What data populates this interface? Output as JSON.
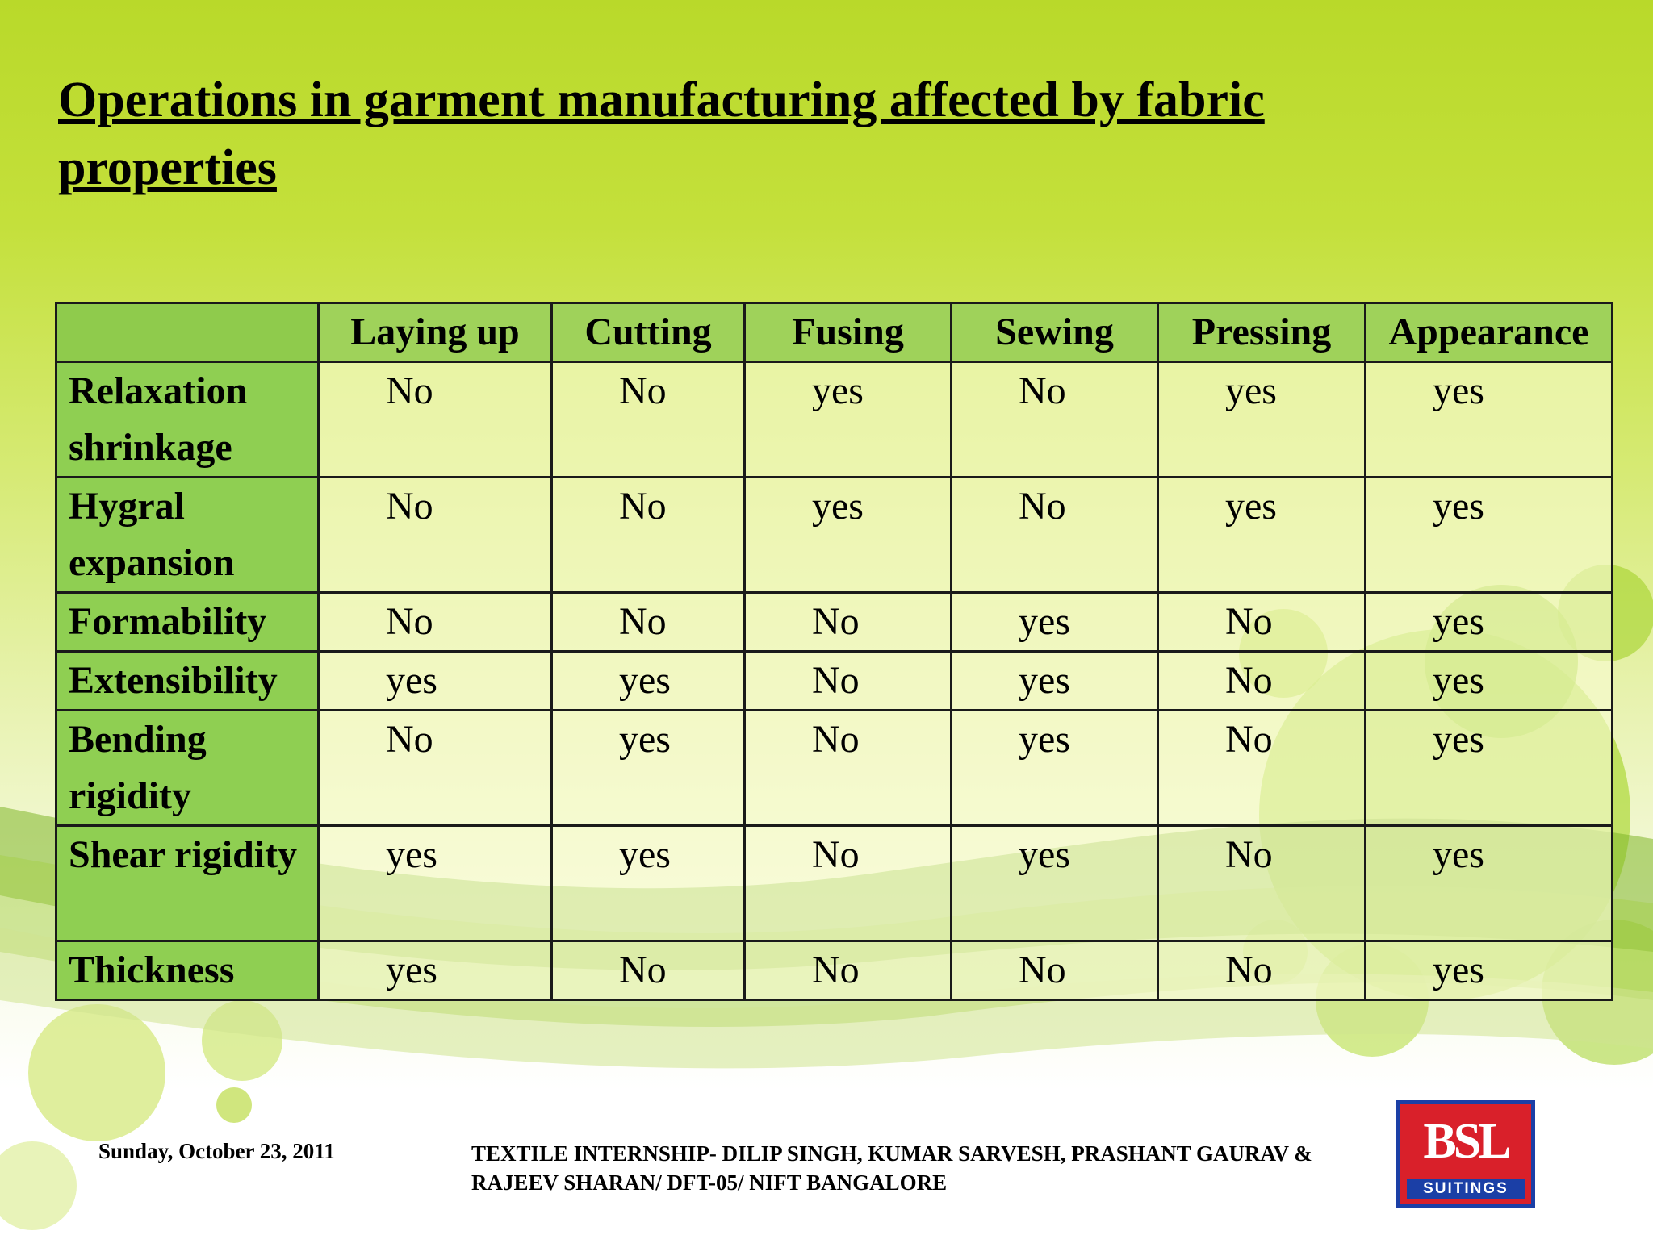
{
  "slide": {
    "title": "Operations in garment manufacturing affected by fabric properties"
  },
  "table": {
    "columns": [
      "",
      "Laying up",
      "Cutting",
      "Fusing",
      "Sewing",
      "Pressing",
      "Appearance"
    ],
    "rows": [
      {
        "label": "Relaxation shrinkage",
        "values": [
          "No",
          "No",
          "yes",
          "No",
          "yes",
          "yes"
        ]
      },
      {
        "label": "Hygral expansion",
        "values": [
          "No",
          "No",
          "yes",
          "No",
          "yes",
          "yes"
        ]
      },
      {
        "label": "Formability",
        "values": [
          "No",
          "No",
          "No",
          "yes",
          "No",
          "yes"
        ]
      },
      {
        "label": "Extensibility",
        "values": [
          "yes",
          "yes",
          "No",
          "yes",
          "No",
          "yes"
        ]
      },
      {
        "label": "Bending rigidity",
        "values": [
          "No",
          "yes",
          "No",
          "yes",
          "No",
          "yes"
        ]
      },
      {
        "label": "Shear rigidity",
        "values": [
          "yes",
          "yes",
          "No",
          "yes",
          "No",
          "yes"
        ]
      },
      {
        "label": "Thickness",
        "values": [
          "yes",
          "No",
          "No",
          "No",
          "No",
          "yes"
        ]
      }
    ]
  },
  "footer": {
    "date": "Sunday, October 23, 2011",
    "credit": "TEXTILE INTERNSHIP- DILIP SINGH, KUMAR SARVESH, PRASHANT GAURAV & RAJEEV SHARAN/ DFT-05/ NIFT BANGALORE"
  },
  "logo": {
    "text": "BSL",
    "subtext": "SUITINGS"
  },
  "colors": {
    "header_green": "#9fd25a",
    "rowhead_green": "#8fcf52",
    "background_top": "#b9d92a"
  }
}
